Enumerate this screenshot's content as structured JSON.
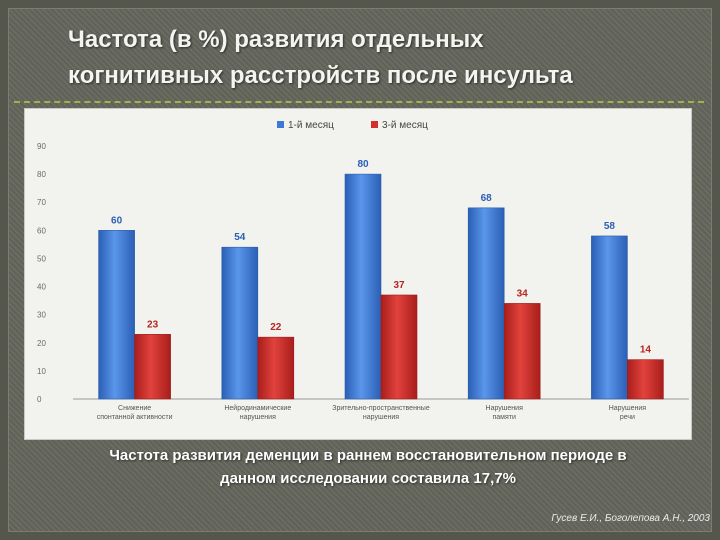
{
  "slide": {
    "title_line1": "Частота (в %) развития отдельных",
    "title_line2": "когнитивных расстройств после инсульта",
    "note_line1": "Частота развития деменции в раннем восстановительном периоде в",
    "note_line2": "данном исследовании составила 17,7%",
    "source": "Гусев Е.И., Боголепова А.Н., 2003"
  },
  "chart_data": {
    "type": "bar",
    "categories": [
      "Снижение спонтанной активности",
      "Нейродинамические нарушения",
      "Зрительно-пространственные нарушения",
      "Нарушения памяти",
      "Нарушения речи"
    ],
    "series": [
      {
        "name": "1-й месяц",
        "values": [
          60,
          54,
          80,
          68,
          58
        ],
        "color": "#3d7ad6"
      },
      {
        "name": "3-й месяц",
        "values": [
          23,
          22,
          37,
          34,
          14
        ],
        "color": "#d2302c"
      }
    ],
    "ylim": [
      0,
      90
    ],
    "yticks": [
      0,
      10,
      20,
      30,
      40,
      50,
      60,
      70,
      80,
      90
    ],
    "legend": "top-center",
    "grid": false
  }
}
